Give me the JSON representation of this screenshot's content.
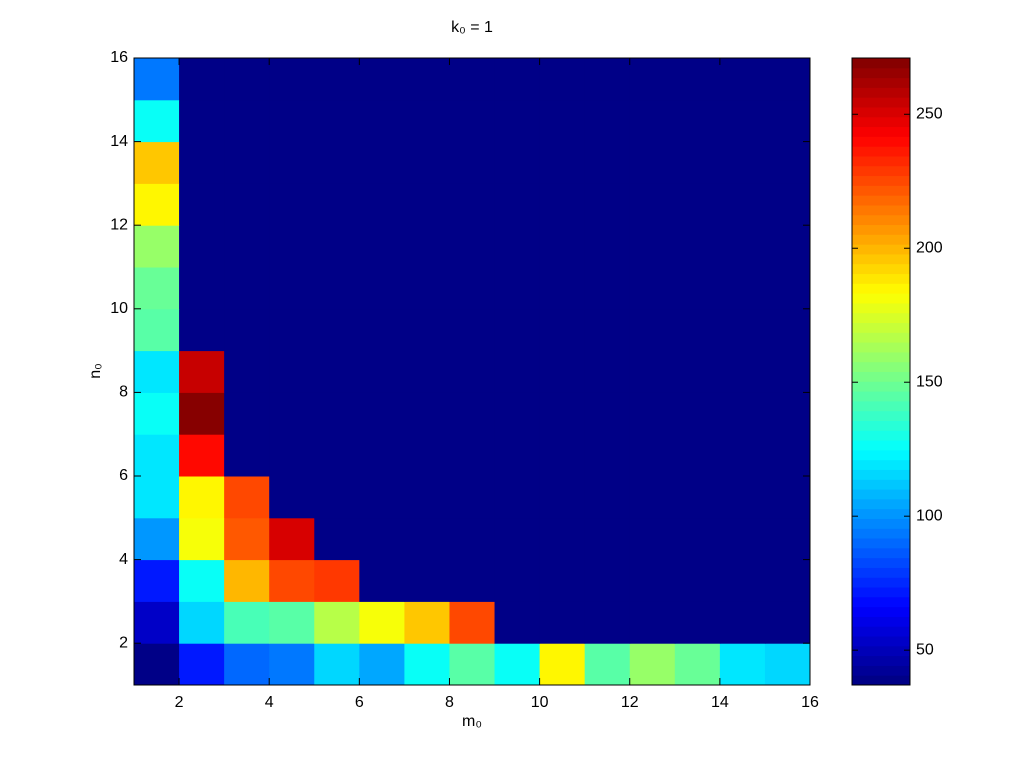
{
  "chart_data": {
    "type": "heatmap",
    "title": "k₀ = 1",
    "x_label": "m₀",
    "y_label": "n₀",
    "colormap": "jet",
    "xlim": [
      1,
      16
    ],
    "ylim": [
      1,
      16
    ],
    "xticks": [
      2,
      4,
      6,
      8,
      10,
      12,
      14,
      16
    ],
    "yticks": [
      2,
      4,
      6,
      8,
      10,
      12,
      14,
      16
    ],
    "clim": [
      37,
      271
    ],
    "cticks": [
      50,
      100,
      150,
      200,
      250
    ],
    "z": [
      [
        40,
        70,
        90,
        95,
        115,
        105,
        125,
        145,
        125,
        185,
        145,
        160,
        150,
        120,
        115
      ],
      [
        55,
        115,
        140,
        145,
        165,
        180,
        195,
        225,
        37,
        37,
        37,
        37,
        37,
        37,
        37
      ],
      [
        70,
        125,
        200,
        225,
        228,
        37,
        37,
        37,
        37,
        37,
        37,
        37,
        37,
        37,
        37
      ],
      [
        100,
        180,
        222,
        250,
        37,
        37,
        37,
        37,
        37,
        37,
        37,
        37,
        37,
        37,
        37
      ],
      [
        118,
        185,
        225,
        37,
        37,
        37,
        37,
        37,
        37,
        37,
        37,
        37,
        37,
        37,
        37
      ],
      [
        120,
        240,
        37,
        37,
        37,
        37,
        37,
        37,
        37,
        37,
        37,
        37,
        37,
        37,
        37
      ],
      [
        125,
        270,
        37,
        37,
        37,
        37,
        37,
        37,
        37,
        37,
        37,
        37,
        37,
        37,
        37
      ],
      [
        120,
        255,
        37,
        37,
        37,
        37,
        37,
        37,
        37,
        37,
        37,
        37,
        37,
        37,
        37
      ],
      [
        145,
        37,
        37,
        37,
        37,
        37,
        37,
        37,
        37,
        37,
        37,
        37,
        37,
        37,
        37
      ],
      [
        150,
        37,
        37,
        37,
        37,
        37,
        37,
        37,
        37,
        37,
        37,
        37,
        37,
        37,
        37
      ],
      [
        160,
        37,
        37,
        37,
        37,
        37,
        37,
        37,
        37,
        37,
        37,
        37,
        37,
        37,
        37
      ],
      [
        185,
        37,
        37,
        37,
        37,
        37,
        37,
        37,
        37,
        37,
        37,
        37,
        37,
        37,
        37
      ],
      [
        195,
        37,
        37,
        37,
        37,
        37,
        37,
        37,
        37,
        37,
        37,
        37,
        37,
        37,
        37
      ],
      [
        125,
        37,
        37,
        37,
        37,
        37,
        37,
        37,
        37,
        37,
        37,
        37,
        37,
        37,
        37
      ],
      [
        95,
        37,
        37,
        37,
        37,
        37,
        37,
        37,
        37,
        37,
        37,
        37,
        37,
        37,
        37
      ]
    ]
  }
}
